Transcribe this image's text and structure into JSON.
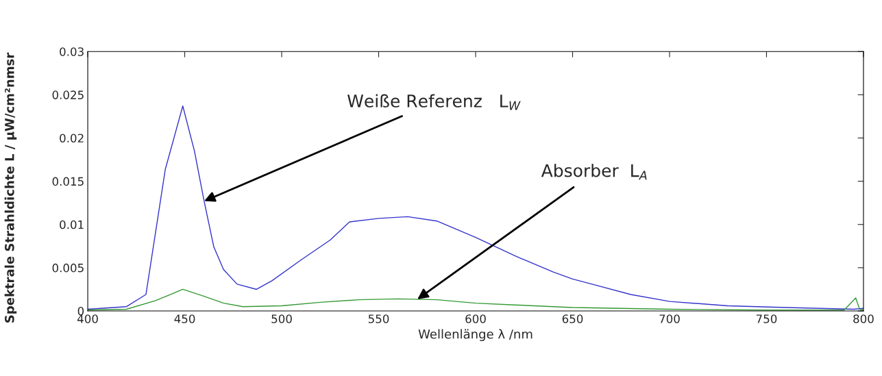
{
  "chart_data": {
    "type": "line",
    "xlabel": "Wellenlänge λ /nm",
    "ylabel": "Spektrale Strahldichte L / µW/cm²nmsr",
    "xlim": [
      400,
      800
    ],
    "ylim": [
      0,
      0.03
    ],
    "xticks": [
      400,
      450,
      500,
      550,
      600,
      650,
      700,
      750,
      800
    ],
    "yticks": [
      0,
      0.005,
      0.01,
      0.015,
      0.02,
      0.025,
      0.03
    ],
    "grid": false,
    "series": [
      {
        "color": "#3333cc",
        "x": [
          400,
          420,
          430,
          440,
          449,
          455,
          460,
          465,
          470,
          477,
          487,
          495,
          510,
          525,
          535,
          550,
          565,
          580,
          600,
          620,
          640,
          650,
          660,
          680,
          700,
          730,
          760,
          795,
          800
        ],
        "values": [
          0.0002,
          0.0005,
          0.0019,
          0.0164,
          0.0237,
          0.0185,
          0.0127,
          0.0074,
          0.0048,
          0.0031,
          0.0025,
          0.0035,
          0.0059,
          0.0082,
          0.0103,
          0.0107,
          0.0109,
          0.0104,
          0.0085,
          0.0064,
          0.0045,
          0.0037,
          0.0031,
          0.0019,
          0.0011,
          0.0006,
          0.0004,
          0.0002,
          0.0003
        ]
      },
      {
        "color": "#339933",
        "x": [
          400,
          420,
          435,
          449,
          460,
          470,
          480,
          500,
          520,
          540,
          560,
          580,
          600,
          620,
          650,
          700,
          750,
          790,
          796,
          798,
          800
        ],
        "values": [
          0.0001,
          0.0002,
          0.0012,
          0.0025,
          0.0017,
          0.0009,
          0.0005,
          0.0006,
          0.001,
          0.0013,
          0.0014,
          0.0013,
          0.0009,
          0.0007,
          0.0004,
          0.0002,
          0.0001,
          0.0001,
          0.0015,
          0.0002,
          0.0001
        ]
      }
    ],
    "annotations": [
      {
        "text": "Weiße Referenz   L$_{W}$",
        "x": 460,
        "y": 0.0127
      },
      {
        "text": "Absorber  L$_{A}$",
        "x": 570,
        "y": 0.00135
      }
    ]
  }
}
